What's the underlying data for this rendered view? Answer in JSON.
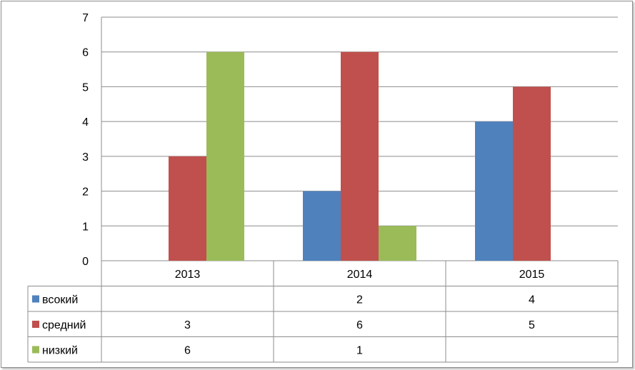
{
  "chart_data": {
    "type": "bar",
    "categories": [
      "2013",
      "2014",
      "2015"
    ],
    "series": [
      {
        "name": "всокий",
        "color": "#4f81bd",
        "values": [
          null,
          2,
          4
        ]
      },
      {
        "name": "средний",
        "color": "#c0504d",
        "values": [
          3,
          6,
          5
        ]
      },
      {
        "name": "низкий",
        "color": "#9bbb59",
        "values": [
          6,
          1,
          null
        ]
      }
    ],
    "y_ticks": [
      "0",
      "1",
      "2",
      "3",
      "4",
      "5",
      "6",
      "7"
    ],
    "ylim": [
      0,
      7
    ],
    "grid": true,
    "legend": "data table below chart",
    "data_table": [
      [
        "",
        "2",
        "4"
      ],
      [
        "3",
        "6",
        "5"
      ],
      [
        "6",
        "1",
        ""
      ]
    ]
  }
}
